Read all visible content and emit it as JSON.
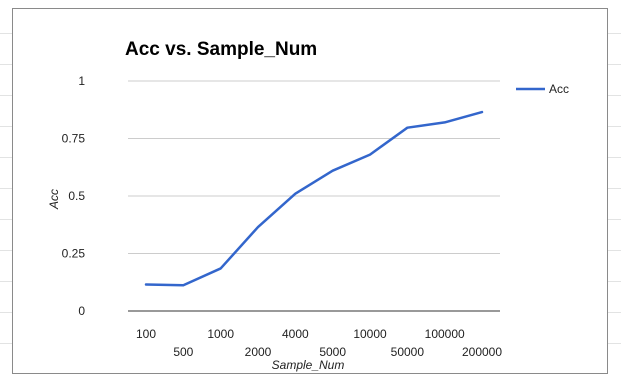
{
  "colors": {
    "series": "#3366cc",
    "grid": "#cccccc",
    "axis": "#333333"
  },
  "chart_data": {
    "type": "line",
    "title": "Acc vs. Sample_Num",
    "xlabel": "Sample_Num",
    "ylabel": "Acc",
    "categories": [
      "100",
      "500",
      "1000",
      "2000",
      "4000",
      "5000",
      "10000",
      "50000",
      "100000",
      "200000"
    ],
    "series": [
      {
        "name": "Acc",
        "values": [
          0.115,
          0.112,
          0.185,
          0.365,
          0.51,
          0.61,
          0.68,
          0.797,
          0.82,
          0.865
        ]
      }
    ],
    "ylim": [
      0,
      1
    ],
    "yticks": [
      {
        "value": 0,
        "label": "0"
      },
      {
        "value": 0.25,
        "label": "0.25"
      },
      {
        "value": 0.5,
        "label": "0.5"
      },
      {
        "value": 0.75,
        "label": "0.75"
      },
      {
        "value": 1,
        "label": "1"
      }
    ],
    "grid": true,
    "legend": "right"
  }
}
